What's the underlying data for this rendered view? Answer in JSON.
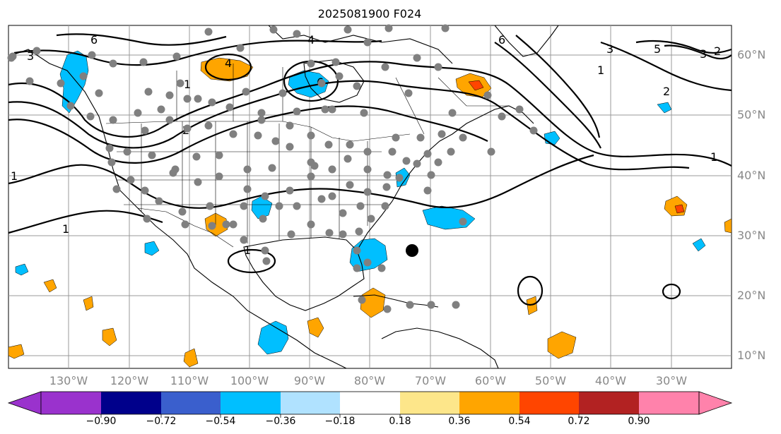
{
  "title": "2025081900 F024",
  "longitude_labels": [
    "130°W",
    "120°W",
    "110°W",
    "100°W",
    "90°W",
    "80°W",
    "70°W",
    "60°W",
    "50°W",
    "40°W",
    "30°W"
  ],
  "latitude_labels": [
    "60°N",
    "50°N",
    "40°N",
    "30°N",
    "20°N",
    "10°N"
  ],
  "colorbar": {
    "tick_labels": [
      "−0.90",
      "−0.72",
      "−0.54",
      "−0.36",
      "−0.18",
      "0.18",
      "0.36",
      "0.54",
      "0.72",
      "0.90"
    ],
    "colors": [
      "#9a32cd",
      "#00008b",
      "#3a5fcd",
      "#00bfff",
      "#b0e2ff",
      "#ffffff",
      "#fde68a",
      "#ffa500",
      "#ff4500",
      "#b22222",
      "#ff82ab"
    ]
  },
  "contour_labels": [
    "1",
    "1",
    "1",
    "1",
    "1",
    "1",
    "2",
    "2",
    "2",
    "3",
    "3",
    "3",
    "4",
    "4",
    "5",
    "6",
    "6",
    "6"
  ],
  "colors": {
    "station_dot": "#808080",
    "cyclone_marker": "#000000"
  }
}
